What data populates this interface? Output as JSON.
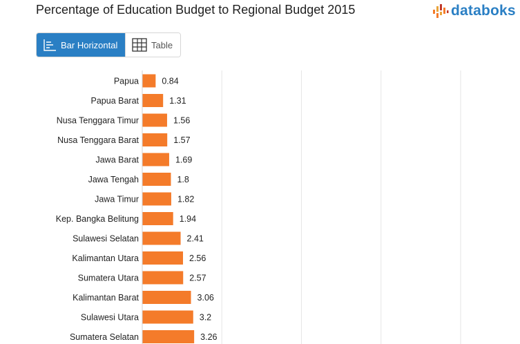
{
  "title": "Percentage of Education Budget to Regional Budget 2015",
  "brand": {
    "name": "databoks",
    "color": "#2a7fc4",
    "icon": "databoks-logo-icon"
  },
  "view_toggle": {
    "active": {
      "label": "Bar Horizontal",
      "icon": "bar-horizontal-icon"
    },
    "inactive": {
      "label": "Table",
      "icon": "table-grid-icon"
    }
  },
  "colors": {
    "bar": "#f47b2a",
    "accent": "#2a7fc4",
    "grid": "#e6e6e6"
  },
  "chart_data": {
    "type": "bar",
    "orientation": "horizontal",
    "categories": [
      "Papua",
      "Papua Barat",
      "Nusa Tenggara Timur",
      "Nusa Tenggara Barat",
      "Jawa Barat",
      "Jawa Tengah",
      "Jawa Timur",
      "Kep. Bangka Belitung",
      "Sulawesi Selatan",
      "Kalimantan Utara",
      "Sumatera Utara",
      "Kalimantan Barat",
      "Sulawesi Utara",
      "Sumatera Selatan"
    ],
    "values": [
      0.84,
      1.31,
      1.56,
      1.57,
      1.69,
      1.8,
      1.82,
      1.94,
      2.41,
      2.56,
      2.57,
      3.06,
      3.2,
      3.26
    ],
    "value_labels": [
      "0.84",
      "1.31",
      "1.56",
      "1.57",
      "1.69",
      "1.8",
      "1.82",
      "1.94",
      "2.41",
      "2.56",
      "2.57",
      "3.06",
      "3.2",
      "3.26"
    ],
    "xlim": [
      0,
      20
    ],
    "grid": true,
    "legend": "none"
  }
}
